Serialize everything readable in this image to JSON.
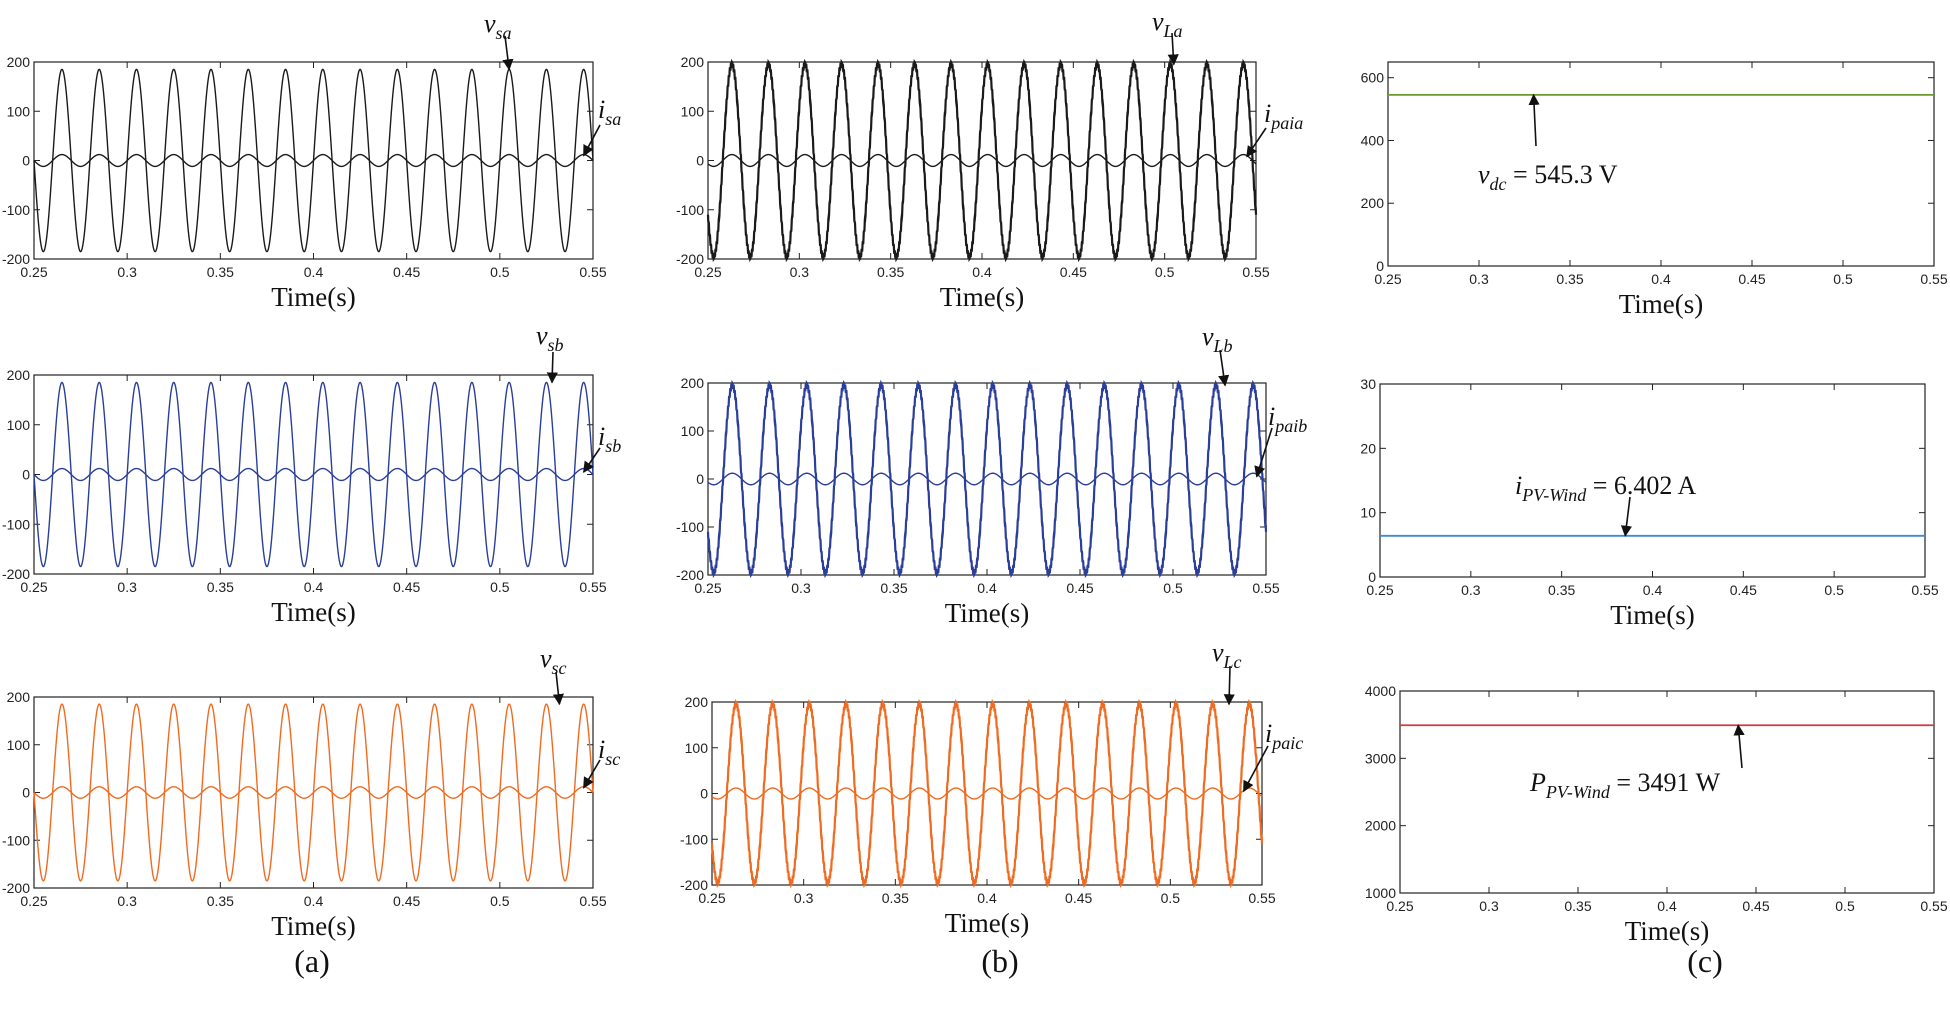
{
  "captions": [
    "(a)",
    "(b)",
    "(c)"
  ],
  "chart_data": [
    {
      "id": "a1",
      "type": "line",
      "xlabel": "Time(s)",
      "xlim": [
        0.25,
        0.55
      ],
      "ylim": [
        -200,
        200
      ],
      "xticks": [
        "0.25",
        "0.3",
        "0.35",
        "0.4",
        "0.45",
        "0.5",
        "0.55"
      ],
      "yticks": [
        "-200",
        "-100",
        "0",
        "100",
        "200"
      ],
      "color": "#1a1a1a",
      "series": [
        {
          "name": "vsa",
          "amplitude": 185,
          "frequency_hz": 50
        },
        {
          "name": "isa",
          "amplitude": 12,
          "frequency_hz": 50
        }
      ],
      "annotations": [
        {
          "base": "v",
          "sub": "sa",
          "x": 0.505,
          "y": 185
        },
        {
          "base": "i",
          "sub": "sa",
          "x": 0.545,
          "y": 10
        }
      ]
    },
    {
      "id": "b1",
      "type": "line",
      "xlabel": "Time(s)",
      "xlim": [
        0.25,
        0.55
      ],
      "ylim": [
        -200,
        200
      ],
      "xticks": [
        "0.25",
        "0.3",
        "0.35",
        "0.4",
        "0.45",
        "0.5",
        "0.55"
      ],
      "yticks": [
        "-200",
        "-100",
        "0",
        "100",
        "200"
      ],
      "color": "#1a1a1a",
      "series": [
        {
          "name": "vLa",
          "amplitude": 195,
          "frequency_hz": 50
        },
        {
          "name": "ipaia",
          "amplitude": 12,
          "frequency_hz": 50
        }
      ],
      "annotations": [
        {
          "base": "v",
          "sub": "La",
          "x": 0.505,
          "y": 195
        },
        {
          "base": "i",
          "sub": "paia",
          "x": 0.545,
          "y": 8
        }
      ]
    },
    {
      "id": "c1",
      "type": "line",
      "xlabel": "Time(s)",
      "xlim": [
        0.25,
        0.55
      ],
      "ylim": [
        0,
        650
      ],
      "xticks": [
        "0.25",
        "0.3",
        "0.35",
        "0.4",
        "0.45",
        "0.5",
        "0.55"
      ],
      "yticks": [
        "0",
        "200",
        "400",
        "600"
      ],
      "color": "#6a9a2a",
      "series": [
        {
          "name": "vdc",
          "constant": 545.3
        }
      ],
      "annotations": [
        {
          "base": "v",
          "sub": "dc",
          "value": " = 545.3 V",
          "x": 0.33,
          "y": 545.3
        }
      ]
    },
    {
      "id": "a2",
      "type": "line",
      "xlabel": "Time(s)",
      "xlim": [
        0.25,
        0.55
      ],
      "ylim": [
        -200,
        200
      ],
      "xticks": [
        "0.25",
        "0.3",
        "0.35",
        "0.4",
        "0.45",
        "0.5",
        "0.55"
      ],
      "yticks": [
        "-200",
        "-100",
        "0",
        "100",
        "200"
      ],
      "color": "#2a3e9a",
      "series": [
        {
          "name": "vsb",
          "amplitude": 185,
          "frequency_hz": 50
        },
        {
          "name": "isb",
          "amplitude": 12,
          "frequency_hz": 50
        }
      ],
      "annotations": [
        {
          "base": "v",
          "sub": "sb",
          "x": 0.528,
          "y": 185
        },
        {
          "base": "i",
          "sub": "sb",
          "x": 0.545,
          "y": 5
        }
      ]
    },
    {
      "id": "b2",
      "type": "line",
      "xlabel": "Time(s)",
      "xlim": [
        0.25,
        0.55
      ],
      "ylim": [
        -200,
        200
      ],
      "xticks": [
        "0.25",
        "0.3",
        "0.35",
        "0.4",
        "0.45",
        "0.5",
        "0.55"
      ],
      "yticks": [
        "-200",
        "-100",
        "0",
        "100",
        "200"
      ],
      "color": "#2a3e9a",
      "series": [
        {
          "name": "vLb",
          "amplitude": 195,
          "frequency_hz": 50
        },
        {
          "name": "ipaib",
          "amplitude": 12,
          "frequency_hz": 50
        }
      ],
      "annotations": [
        {
          "base": "v",
          "sub": "Lb",
          "x": 0.528,
          "y": 195
        },
        {
          "base": "i",
          "sub": "paib",
          "x": 0.545,
          "y": 5
        }
      ]
    },
    {
      "id": "c2",
      "type": "line",
      "xlabel": "Time(s)",
      "xlim": [
        0.25,
        0.55
      ],
      "ylim": [
        0,
        30
      ],
      "xticks": [
        "0.25",
        "0.3",
        "0.35",
        "0.4",
        "0.45",
        "0.5",
        "0.55"
      ],
      "yticks": [
        "0",
        "10",
        "20",
        "30"
      ],
      "color": "#3d8bd0",
      "series": [
        {
          "name": "iPV-Wind",
          "constant": 6.402
        }
      ],
      "annotations": [
        {
          "base": "i",
          "sub": "PV-Wind",
          "value": " = 6.402 A",
          "x": 0.385,
          "y": 6.402
        }
      ]
    },
    {
      "id": "a3",
      "type": "line",
      "xlabel": "Time(s)",
      "xlim": [
        0.25,
        0.55
      ],
      "ylim": [
        -200,
        200
      ],
      "xticks": [
        "0.25",
        "0.3",
        "0.35",
        "0.4",
        "0.45",
        "0.5",
        "0.55"
      ],
      "yticks": [
        "-200",
        "-100",
        "0",
        "100",
        "200"
      ],
      "color": "#f06a20",
      "series": [
        {
          "name": "vsc",
          "amplitude": 185,
          "frequency_hz": 50
        },
        {
          "name": "isc",
          "amplitude": 12,
          "frequency_hz": 50
        }
      ],
      "annotations": [
        {
          "base": "v",
          "sub": "sc",
          "x": 0.532,
          "y": 185
        },
        {
          "base": "i",
          "sub": "sc",
          "x": 0.545,
          "y": 10
        }
      ]
    },
    {
      "id": "b3",
      "type": "line",
      "xlabel": "Time(s)",
      "xlim": [
        0.25,
        0.55
      ],
      "ylim": [
        -200,
        200
      ],
      "xticks": [
        "0.25",
        "0.3",
        "0.35",
        "0.4",
        "0.45",
        "0.5",
        "0.55"
      ],
      "yticks": [
        "-200",
        "-100",
        "0",
        "100",
        "200"
      ],
      "color": "#f06a20",
      "series": [
        {
          "name": "vLc",
          "amplitude": 195,
          "frequency_hz": 50
        },
        {
          "name": "ipaic",
          "amplitude": 12,
          "frequency_hz": 50
        }
      ],
      "annotations": [
        {
          "base": "v",
          "sub": "Lc",
          "x": 0.532,
          "y": 195
        },
        {
          "base": "i",
          "sub": "paic",
          "x": 0.54,
          "y": 5
        }
      ]
    },
    {
      "id": "c3",
      "type": "line",
      "xlabel": "Time(s)",
      "xlim": [
        0.25,
        0.55
      ],
      "ylim": [
        1000,
        4000
      ],
      "xticks": [
        "0.25",
        "0.3",
        "0.35",
        "0.4",
        "0.45",
        "0.5",
        "0.55"
      ],
      "yticks": [
        "1000",
        "2000",
        "3000",
        "4000"
      ],
      "color": "#d03a3a",
      "series": [
        {
          "name": "PPV-Wind",
          "constant": 3491
        }
      ],
      "annotations": [
        {
          "base": "P",
          "sub": "PV-Wind",
          "value": " = 3491 W",
          "x": 0.44,
          "y": 3491
        }
      ]
    }
  ]
}
